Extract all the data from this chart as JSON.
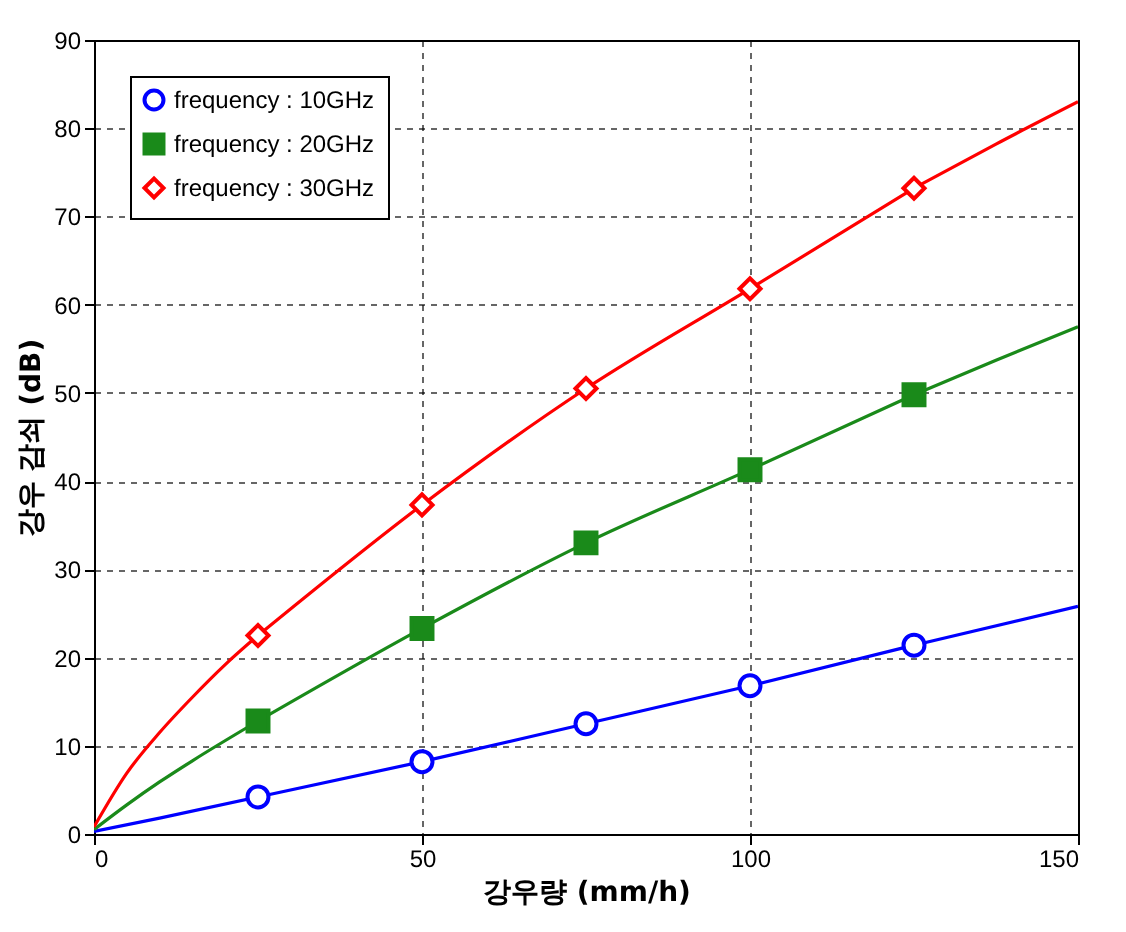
{
  "chart_data": {
    "type": "line",
    "xlabel": "강우량 (mm/h)",
    "ylabel": "강우 감쇠 (dB)",
    "xlim": [
      0,
      150
    ],
    "ylim": [
      0,
      90
    ],
    "xticks": [
      0,
      50,
      100,
      150
    ],
    "yticks": [
      0,
      10,
      20,
      30,
      40,
      50,
      60,
      70,
      80,
      90
    ],
    "grid": true,
    "legend": "top left",
    "series": [
      {
        "name": "frequency : 10GHz",
        "color": "#0000ff",
        "marker": "circle",
        "x": [
          25,
          50,
          75,
          100,
          125
        ],
        "values": [
          4.2,
          8.2,
          12.5,
          16.8,
          21.4
        ]
      },
      {
        "name": "frequency : 20GHz",
        "color": "#1a8a1a",
        "marker": "square",
        "x": [
          25,
          50,
          75,
          100,
          125
        ],
        "values": [
          12.8,
          23.3,
          33,
          41.3,
          49.8
        ]
      },
      {
        "name": "frequency : 30GHz",
        "color": "#ff0000",
        "marker": "diamond",
        "x": [
          25,
          50,
          75,
          100,
          125
        ],
        "values": [
          22.5,
          37.3,
          50.5,
          61.8,
          73.2
        ]
      },
      {
        "color": "#0000ff",
        "marker": "none",
        "x": [
          0,
          10,
          25,
          null,
          125,
          150
        ],
        "values": [
          0.3,
          1.8,
          4.2,
          null,
          21.4,
          25.8
        ]
      },
      {
        "color": "#1a8a1a",
        "marker": "none",
        "x": [
          0,
          5,
          10,
          15,
          25,
          null,
          125,
          137.5,
          150
        ],
        "values": [
          0.5,
          3.3,
          5.9,
          8.3,
          12.8,
          null,
          49.8,
          53.7,
          57.5
        ]
      },
      {
        "color": "#ff0000",
        "marker": "none",
        "x": [
          0,
          5,
          10,
          15,
          20,
          25,
          null,
          125,
          137.5,
          150
        ],
        "values": [
          0.8,
          6.9,
          11.5,
          15.5,
          19.2,
          22.5,
          null,
          73.2,
          78.2,
          83
        ]
      }
    ]
  }
}
